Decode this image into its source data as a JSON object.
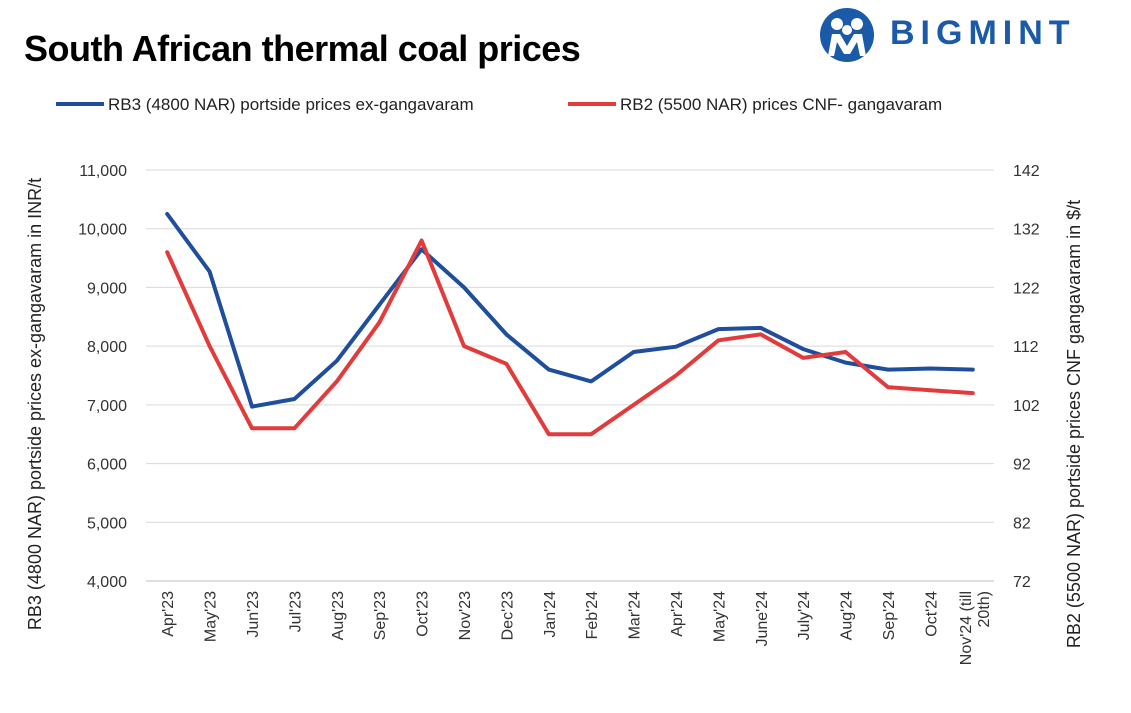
{
  "title": "South African thermal coal prices",
  "logo": {
    "text": "BIGMINT",
    "icon": "people-logo-icon",
    "color": "#1a5aa8"
  },
  "chart_data": {
    "type": "line",
    "categories": [
      "Apr'23",
      "May'23",
      "Jun'23",
      "Jul'23",
      "Aug'23",
      "Sep'23",
      "Oct'23",
      "Nov'23",
      "Dec'23",
      "Jan'24",
      "Feb'24",
      "Mar'24",
      "Apr'24",
      "May'24",
      "June'24",
      "July'24",
      "Aug'24",
      "Sep'24",
      "Oct'24",
      "Nov'24 (till 20th)"
    ],
    "category_lines": [
      [
        "Apr'23"
      ],
      [
        "May'23"
      ],
      [
        "Jun'23"
      ],
      [
        "Jul'23"
      ],
      [
        "Aug'23"
      ],
      [
        "Sep'23"
      ],
      [
        "Oct'23"
      ],
      [
        "Nov'23"
      ],
      [
        "Dec'23"
      ],
      [
        "Jan'24"
      ],
      [
        "Feb'24"
      ],
      [
        "Mar'24"
      ],
      [
        "Apr'24"
      ],
      [
        "May'24"
      ],
      [
        "June'24"
      ],
      [
        "July'24"
      ],
      [
        "Aug'24"
      ],
      [
        "Sep'24"
      ],
      [
        "Oct'24"
      ],
      [
        "Nov'24 (till",
        "20th)"
      ]
    ],
    "y_left": {
      "label": "RB3 (4800 NAR) portside prices ex-gangavaram  in INR/t",
      "ylim": [
        4000,
        11000
      ],
      "ticks": [
        "4,000",
        "5,000",
        "6,000",
        "7,000",
        "8,000",
        "9,000",
        "10,000",
        "11,000"
      ]
    },
    "y_right": {
      "label": "RB2 (5500 NAR) portside prices CNF  gangavaram  in $/t",
      "ylim": [
        72,
        142
      ],
      "ticks": [
        "72",
        "82",
        "92",
        "102",
        "112",
        "122",
        "132",
        "142"
      ]
    },
    "grid": true,
    "legend_position": "top",
    "series": [
      {
        "name": "RB3 (4800 NAR) portside prices ex-gangavaram",
        "axis": "left",
        "color": "#1f4e9c",
        "values": [
          10250,
          9270,
          6970,
          7100,
          7750,
          8700,
          9650,
          9000,
          8200,
          7600,
          7400,
          7900,
          7990,
          8290,
          8310,
          7950,
          7720,
          7600,
          7620,
          7600
        ]
      },
      {
        "name": "RB2 (5500 NAR) prices CNF- gangavaram",
        "axis": "right",
        "color": "#e23b3b",
        "values": [
          128,
          112,
          98,
          98,
          106,
          116,
          130,
          112,
          109,
          97,
          97,
          102,
          107,
          113,
          114,
          110,
          111,
          105,
          104.5,
          104
        ]
      }
    ]
  }
}
